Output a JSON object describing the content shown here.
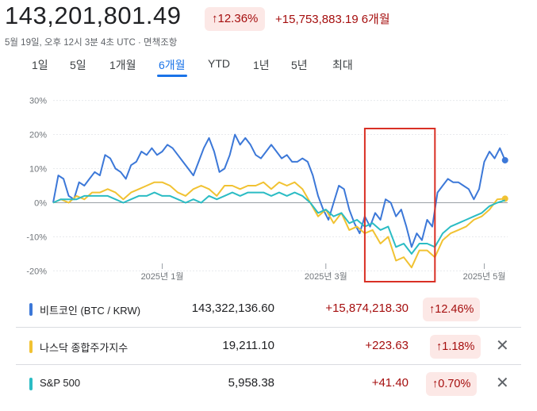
{
  "header": {
    "price": "143,201,801.49",
    "pct_badge": "↑12.36%",
    "change": "+15,753,883.19",
    "period": "6개월",
    "timestamp": "5월 19일, 오후 12시 3분 4초 UTC · 면책조항"
  },
  "tabs": [
    {
      "label": "1일",
      "active": false
    },
    {
      "label": "5일",
      "active": false
    },
    {
      "label": "1개월",
      "active": false
    },
    {
      "label": "6개월",
      "active": true
    },
    {
      "label": "YTD",
      "active": false
    },
    {
      "label": "1년",
      "active": false
    },
    {
      "label": "5년",
      "active": false
    },
    {
      "label": "최대",
      "active": false
    }
  ],
  "colors": {
    "btc": "#3c78d8",
    "nasdaq": "#f1c232",
    "sp500": "#2bbcc4",
    "up": "#a50e0e",
    "highlight_box": "#d93025"
  },
  "chart_data": {
    "type": "line",
    "ylim": [
      -22,
      32
    ],
    "yticks": [
      "30%",
      "20%",
      "10%",
      "0%",
      "-10%",
      "-20%"
    ],
    "ytick_values": [
      30,
      20,
      10,
      0,
      -10,
      -20
    ],
    "xticks": [
      "2025년 1월",
      "2025년 3월",
      "2025년 5월"
    ],
    "xtick_positions": [
      42,
      105,
      166
    ],
    "x_range": [
      0,
      175
    ],
    "highlight_range": [
      120,
      147
    ],
    "series": [
      {
        "name": "비트코인 (BTC / KRW)",
        "color_key": "btc",
        "end_marker": true,
        "points": [
          [
            0,
            0
          ],
          [
            2,
            8
          ],
          [
            4,
            7
          ],
          [
            6,
            2
          ],
          [
            8,
            1
          ],
          [
            10,
            6
          ],
          [
            12,
            5
          ],
          [
            14,
            7
          ],
          [
            16,
            9
          ],
          [
            18,
            8
          ],
          [
            20,
            14
          ],
          [
            22,
            13
          ],
          [
            24,
            10
          ],
          [
            26,
            9
          ],
          [
            28,
            7
          ],
          [
            30,
            11
          ],
          [
            32,
            12
          ],
          [
            34,
            15
          ],
          [
            36,
            14
          ],
          [
            38,
            16
          ],
          [
            40,
            14
          ],
          [
            42,
            15
          ],
          [
            44,
            17
          ],
          [
            46,
            16
          ],
          [
            48,
            14
          ],
          [
            50,
            12
          ],
          [
            52,
            10
          ],
          [
            54,
            8
          ],
          [
            56,
            12
          ],
          [
            58,
            16
          ],
          [
            60,
            19
          ],
          [
            62,
            15
          ],
          [
            64,
            9
          ],
          [
            66,
            10
          ],
          [
            68,
            14
          ],
          [
            70,
            20
          ],
          [
            72,
            17
          ],
          [
            74,
            19
          ],
          [
            76,
            17
          ],
          [
            78,
            14
          ],
          [
            80,
            13
          ],
          [
            82,
            15
          ],
          [
            84,
            17
          ],
          [
            86,
            15
          ],
          [
            88,
            13
          ],
          [
            90,
            14
          ],
          [
            92,
            12
          ],
          [
            94,
            12
          ],
          [
            96,
            13
          ],
          [
            98,
            12
          ],
          [
            100,
            8
          ],
          [
            102,
            2
          ],
          [
            104,
            -2
          ],
          [
            106,
            -5
          ],
          [
            108,
            0
          ],
          [
            110,
            5
          ],
          [
            112,
            4
          ],
          [
            114,
            -2
          ],
          [
            116,
            -6
          ],
          [
            118,
            -9
          ],
          [
            120,
            -4
          ],
          [
            122,
            -7
          ],
          [
            124,
            -3
          ],
          [
            126,
            -5
          ],
          [
            128,
            1
          ],
          [
            130,
            0
          ],
          [
            132,
            -4
          ],
          [
            134,
            -2
          ],
          [
            136,
            -7
          ],
          [
            138,
            -13
          ],
          [
            140,
            -9
          ],
          [
            142,
            -11
          ],
          [
            144,
            -5
          ],
          [
            146,
            -7
          ],
          [
            148,
            3
          ],
          [
            150,
            5
          ],
          [
            152,
            7
          ],
          [
            154,
            6
          ],
          [
            156,
            6
          ],
          [
            158,
            5
          ],
          [
            160,
            4
          ],
          [
            162,
            1
          ],
          [
            164,
            4
          ],
          [
            166,
            12
          ],
          [
            168,
            15
          ],
          [
            170,
            13
          ],
          [
            172,
            16
          ],
          [
            174,
            12.46
          ]
        ]
      },
      {
        "name": "나스닥 종합주가지수",
        "color_key": "nasdaq",
        "end_marker": true,
        "points": [
          [
            0,
            0
          ],
          [
            3,
            1
          ],
          [
            6,
            0
          ],
          [
            9,
            2
          ],
          [
            12,
            1
          ],
          [
            15,
            3
          ],
          [
            18,
            3
          ],
          [
            21,
            4
          ],
          [
            24,
            3
          ],
          [
            27,
            1
          ],
          [
            30,
            3
          ],
          [
            33,
            4
          ],
          [
            36,
            5
          ],
          [
            39,
            6
          ],
          [
            42,
            6
          ],
          [
            45,
            5
          ],
          [
            48,
            3
          ],
          [
            51,
            2
          ],
          [
            54,
            4
          ],
          [
            57,
            5
          ],
          [
            60,
            4
          ],
          [
            63,
            2
          ],
          [
            66,
            5
          ],
          [
            69,
            5
          ],
          [
            72,
            4
          ],
          [
            75,
            5
          ],
          [
            78,
            5
          ],
          [
            81,
            6
          ],
          [
            84,
            4
          ],
          [
            87,
            6
          ],
          [
            90,
            5
          ],
          [
            93,
            6
          ],
          [
            96,
            4
          ],
          [
            99,
            0
          ],
          [
            102,
            -4
          ],
          [
            105,
            -2
          ],
          [
            108,
            -6
          ],
          [
            111,
            -3
          ],
          [
            114,
            -8
          ],
          [
            117,
            -7
          ],
          [
            120,
            -9
          ],
          [
            123,
            -8
          ],
          [
            126,
            -12
          ],
          [
            129,
            -10
          ],
          [
            132,
            -17
          ],
          [
            135,
            -16
          ],
          [
            138,
            -19
          ],
          [
            141,
            -14
          ],
          [
            144,
            -14
          ],
          [
            147,
            -16
          ],
          [
            150,
            -11
          ],
          [
            153,
            -9
          ],
          [
            156,
            -8
          ],
          [
            159,
            -7
          ],
          [
            162,
            -5
          ],
          [
            165,
            -4
          ],
          [
            168,
            -2
          ],
          [
            171,
            1
          ],
          [
            174,
            1.18
          ]
        ]
      },
      {
        "name": "S&P 500",
        "color_key": "sp500",
        "end_marker": false,
        "points": [
          [
            0,
            0
          ],
          [
            3,
            1
          ],
          [
            6,
            1
          ],
          [
            9,
            1
          ],
          [
            12,
            2
          ],
          [
            15,
            2
          ],
          [
            18,
            2
          ],
          [
            21,
            2
          ],
          [
            24,
            1
          ],
          [
            27,
            0
          ],
          [
            30,
            1
          ],
          [
            33,
            2
          ],
          [
            36,
            2
          ],
          [
            39,
            3
          ],
          [
            42,
            2
          ],
          [
            45,
            2
          ],
          [
            48,
            1
          ],
          [
            51,
            0
          ],
          [
            54,
            1
          ],
          [
            57,
            0
          ],
          [
            60,
            2
          ],
          [
            63,
            1
          ],
          [
            66,
            2
          ],
          [
            69,
            3
          ],
          [
            72,
            2
          ],
          [
            75,
            3
          ],
          [
            78,
            3
          ],
          [
            81,
            3
          ],
          [
            84,
            2
          ],
          [
            87,
            3
          ],
          [
            90,
            2
          ],
          [
            93,
            3
          ],
          [
            96,
            2
          ],
          [
            99,
            0
          ],
          [
            102,
            -3
          ],
          [
            105,
            -2
          ],
          [
            108,
            -4
          ],
          [
            111,
            -3
          ],
          [
            114,
            -6
          ],
          [
            117,
            -5
          ],
          [
            120,
            -7
          ],
          [
            123,
            -6
          ],
          [
            126,
            -8
          ],
          [
            129,
            -7
          ],
          [
            132,
            -13
          ],
          [
            135,
            -12
          ],
          [
            138,
            -15
          ],
          [
            141,
            -12
          ],
          [
            144,
            -12
          ],
          [
            147,
            -13
          ],
          [
            150,
            -9
          ],
          [
            153,
            -7
          ],
          [
            156,
            -6
          ],
          [
            159,
            -5
          ],
          [
            162,
            -4
          ],
          [
            165,
            -3
          ],
          [
            168,
            -1
          ],
          [
            171,
            0
          ],
          [
            174,
            0.7
          ]
        ]
      }
    ]
  },
  "legend": [
    {
      "name": "비트코인 (BTC / KRW)",
      "value": "143,322,136.60",
      "change": "+15,874,218.30",
      "pct": "↑12.46%",
      "color_key": "btc",
      "closable": false
    },
    {
      "name": "나스닥 종합주가지수",
      "value": "19,211.10",
      "change": "+223.63",
      "pct": "↑1.18%",
      "color_key": "nasdaq",
      "closable": true
    },
    {
      "name": "S&P 500",
      "value": "5,958.38",
      "change": "+41.40",
      "pct": "↑0.70%",
      "color_key": "sp500",
      "closable": true
    }
  ],
  "close_icon": "close-icon"
}
